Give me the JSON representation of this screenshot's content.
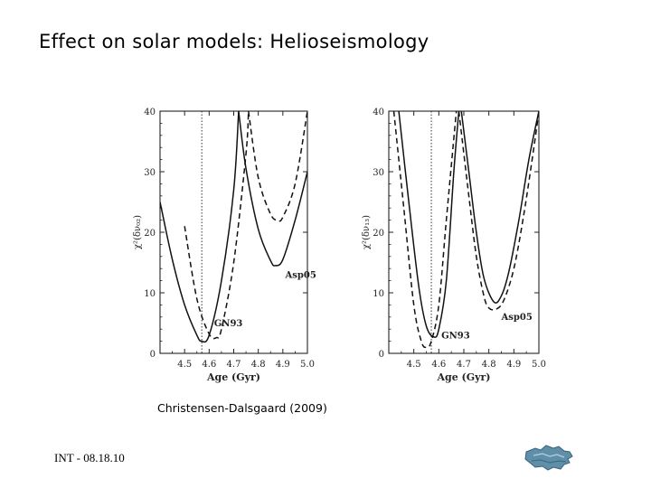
{
  "slide": {
    "title": "Effect on solar models: Helioseismology",
    "caption": "Christensen-Dalsgaard (2009)",
    "footer": "INT - 08.18.10",
    "logo_icon": "institution-logo-icon"
  },
  "chart_data": [
    {
      "type": "line",
      "title": "",
      "xlabel": "Age (Gyr)",
      "ylabel": "χ²(δν₀₂)",
      "xlim": [
        4.4,
        5.0
      ],
      "ylim": [
        0,
        40
      ],
      "x_ticks": [
        "4.5",
        "4.6",
        "4.7",
        "4.8",
        "4.9",
        "5.0"
      ],
      "y_ticks": [
        "0",
        "10",
        "20",
        "30",
        "40"
      ],
      "reference_line_x": 4.57,
      "annotations": [
        "GN93",
        "Asp05"
      ],
      "series": [
        {
          "style": "solid",
          "x": [
            4.4,
            4.45,
            4.5,
            4.55,
            4.57,
            4.6,
            4.65,
            4.7,
            4.72
          ],
          "y": [
            25,
            15.5,
            8.0,
            3.0,
            2.0,
            3.0,
            12.0,
            27.0,
            40.0
          ]
        },
        {
          "style": "dashed",
          "x": [
            4.5,
            4.55,
            4.6,
            4.63,
            4.65,
            4.7,
            4.75,
            4.76
          ],
          "y": [
            21.0,
            9.0,
            3.2,
            2.6,
            4.0,
            15.0,
            33.0,
            40.0
          ]
        },
        {
          "style": "solid",
          "x": [
            4.72,
            4.75,
            4.8,
            4.85,
            4.87,
            4.9,
            4.95,
            5.0
          ],
          "y": [
            40.0,
            30.5,
            20.5,
            15.3,
            14.5,
            15.5,
            22.0,
            30.0
          ]
        },
        {
          "style": "dashed",
          "x": [
            4.76,
            4.8,
            4.85,
            4.88,
            4.9,
            4.95,
            5.0
          ],
          "y": [
            40.0,
            29.0,
            23.0,
            22.0,
            22.5,
            28.0,
            40.0
          ]
        }
      ]
    },
    {
      "type": "line",
      "title": "",
      "xlabel": "Age (Gyr)",
      "ylabel": "χ²(δν₁₃)",
      "xlim": [
        4.4,
        5.0
      ],
      "ylim": [
        0,
        40
      ],
      "x_ticks": [
        "4.5",
        "4.6",
        "4.7",
        "4.8",
        "4.9",
        "5.0"
      ],
      "y_ticks": [
        "0",
        "10",
        "20",
        "30",
        "40"
      ],
      "reference_line_x": 4.57,
      "annotations": [
        "GN93",
        "Asp05"
      ],
      "series": [
        {
          "style": "solid",
          "x": [
            4.44,
            4.48,
            4.52,
            4.55,
            4.58,
            4.6,
            4.63,
            4.66,
            4.68
          ],
          "y": [
            40.0,
            25.0,
            11.0,
            4.5,
            2.7,
            4.0,
            12.0,
            30.0,
            40.0
          ]
        },
        {
          "style": "dashed",
          "x": [
            4.42,
            4.46,
            4.5,
            4.53,
            4.55,
            4.57,
            4.6,
            4.63,
            4.67
          ],
          "y": [
            40.0,
            24.0,
            8.0,
            2.0,
            1.0,
            2.0,
            8.0,
            22.0,
            40.0
          ]
        },
        {
          "style": "solid",
          "x": [
            4.69,
            4.72,
            4.75,
            4.78,
            4.82,
            4.85,
            4.88,
            4.92,
            4.96,
            5.0
          ],
          "y": [
            40.0,
            30.0,
            20.0,
            12.5,
            8.5,
            9.5,
            13.5,
            22.0,
            32.0,
            40.0
          ]
        },
        {
          "style": "dashed",
          "x": [
            4.68,
            4.72,
            4.75,
            4.78,
            4.8,
            4.83,
            4.86,
            4.9,
            4.94,
            4.98,
            5.0
          ],
          "y": [
            40.0,
            26.0,
            16.0,
            9.5,
            7.5,
            7.3,
            8.8,
            14.0,
            23.0,
            34.0,
            40.0
          ]
        }
      ]
    }
  ]
}
